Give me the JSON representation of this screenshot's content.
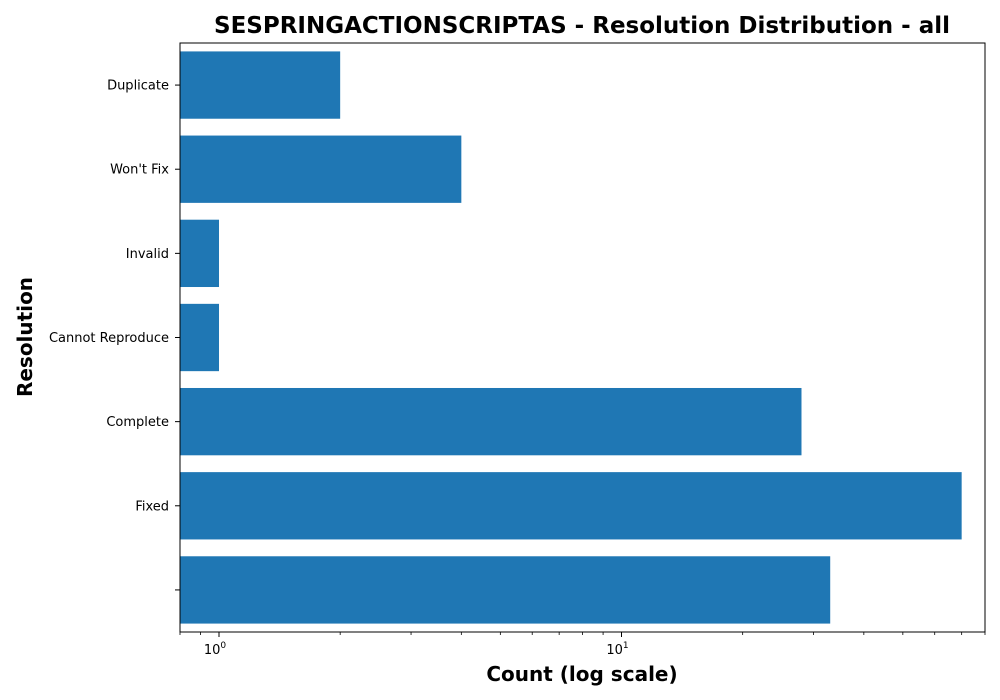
{
  "chart_data": {
    "type": "bar",
    "orientation": "horizontal",
    "title": "SESPRINGACTIONSCRIPTAS - Resolution Distribution - all",
    "xlabel": "Count (log scale)",
    "ylabel": "Resolution",
    "x_scale": "log",
    "xlim": [
      0.8,
      80
    ],
    "x_ticks": [
      {
        "base": "10",
        "exp": "0",
        "value": 1
      },
      {
        "base": "10",
        "exp": "1",
        "value": 10
      }
    ],
    "categories": [
      "",
      "Fixed",
      "Complete",
      "Cannot Reproduce",
      "Invalid",
      "Won't Fix",
      "Duplicate"
    ],
    "values": [
      33,
      70,
      28,
      1,
      1,
      4,
      2
    ],
    "bar_color": "#1f77b4",
    "grid": false
  }
}
